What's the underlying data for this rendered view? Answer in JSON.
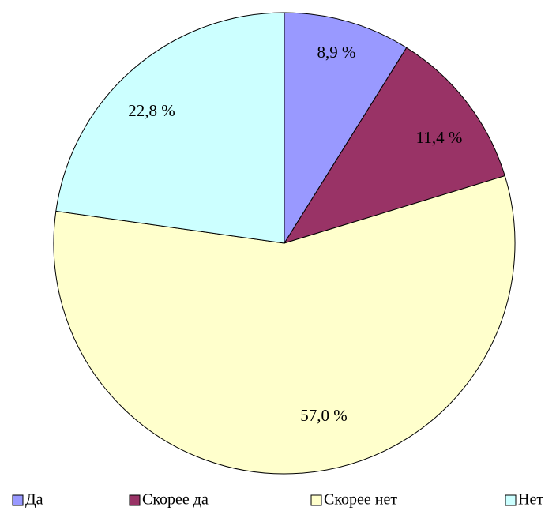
{
  "chart_data": {
    "type": "pie",
    "categories": [
      "Да",
      "Скорее да",
      "Скорее нет",
      "Нет"
    ],
    "values": [
      8.9,
      11.4,
      57.0,
      22.8
    ],
    "data_labels": [
      "8,9 %",
      "11,4 %",
      "57,0 %",
      "22,8 %"
    ],
    "colors": [
      "#9999ff",
      "#993366",
      "#ffffcc",
      "#ccffff"
    ],
    "start_angle": "12 o'clock",
    "direction": "clockwise",
    "legend_position": "bottom"
  }
}
